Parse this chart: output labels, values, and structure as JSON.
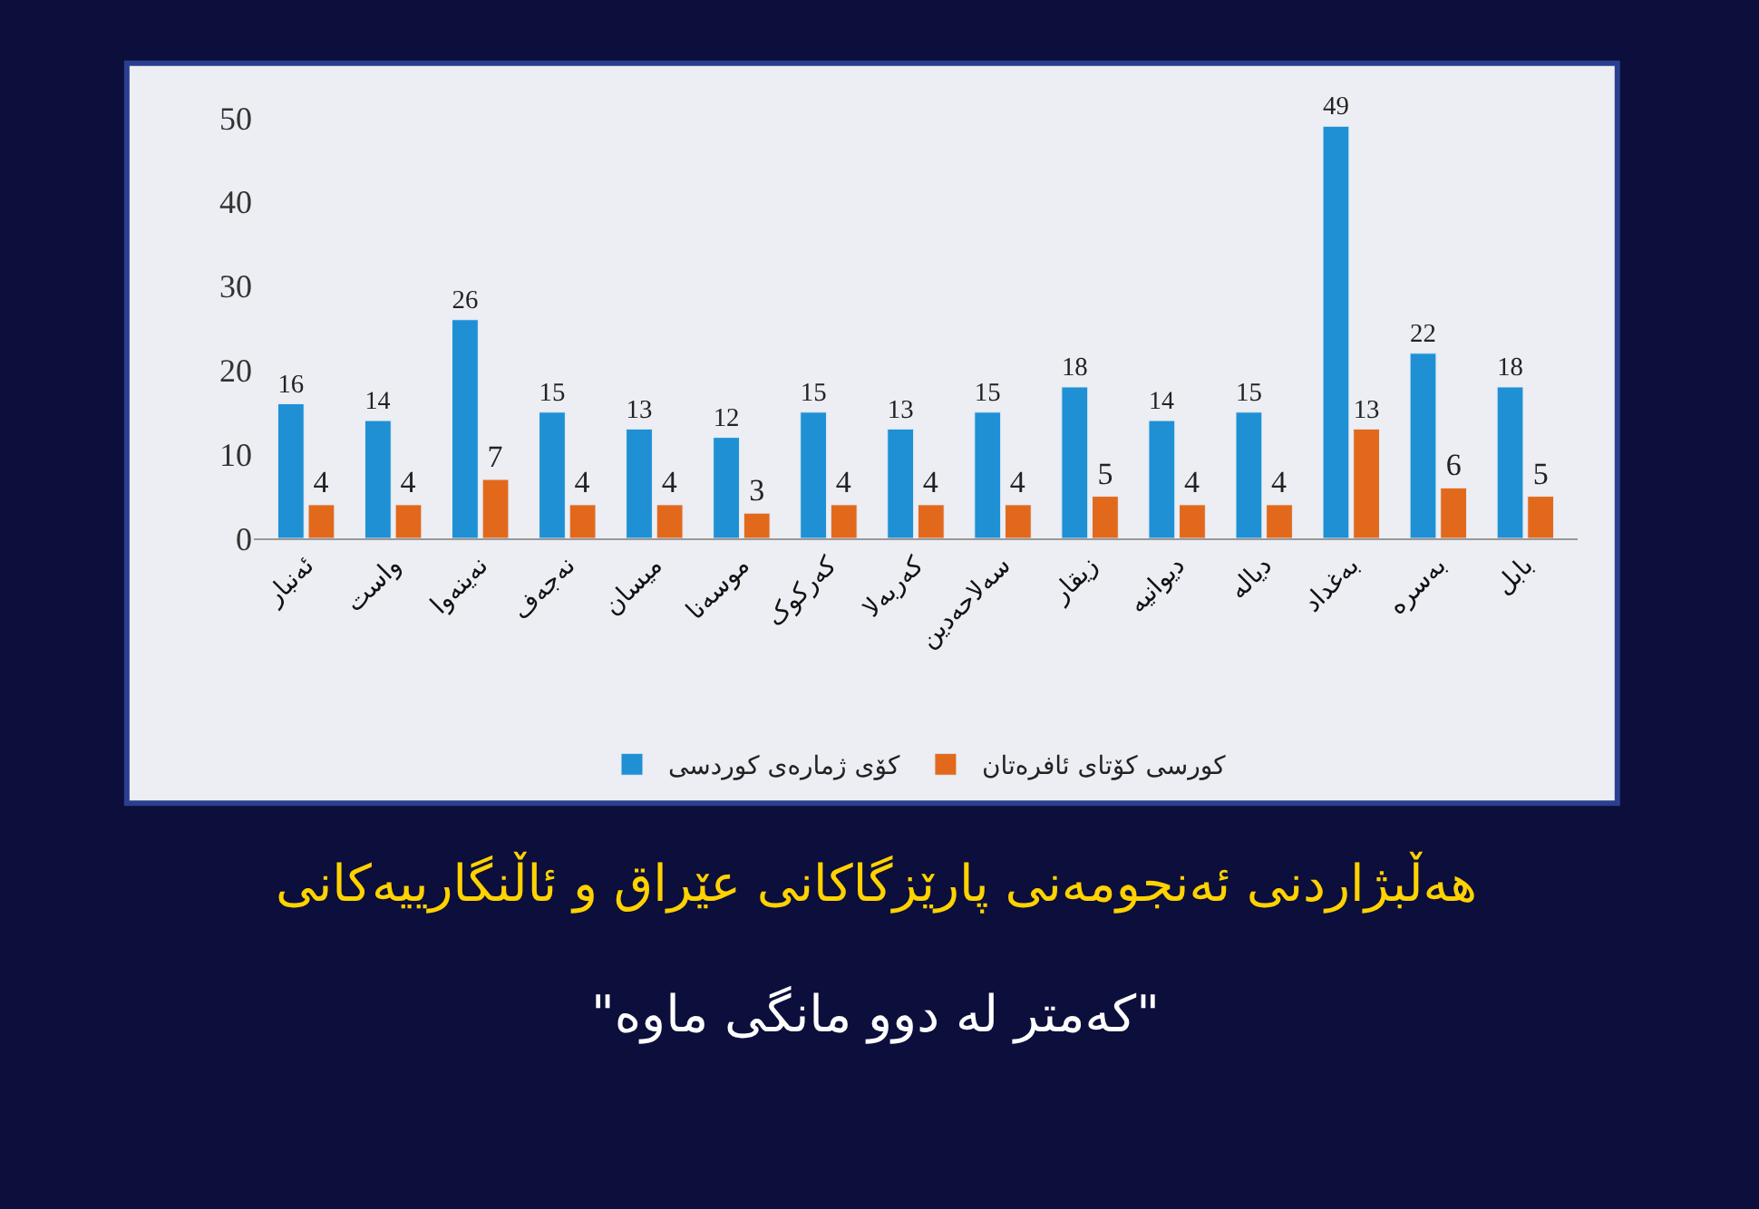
{
  "chart_data": {
    "type": "bar",
    "title": "هەڵبژاردنی ئەنجومەنی پارێزگاکانی عێراق و ئاڵنگارییەکانی",
    "subtitle": "\"کەمتر لە دوو مانگی ماوە\"",
    "categories": [
      "ئەنبار",
      "واست",
      "نەینەوا",
      "نەجەف",
      "میسان",
      "موسەنا",
      "کەرکوک",
      "کەربەلا",
      "سەلاحەدین",
      "زیقار",
      "دیوانیە",
      "دیالە",
      "بەغداد",
      "بەسرە",
      "بابل"
    ],
    "series": [
      {
        "name": "کۆی ژمارەی کوردسی",
        "color": "#1f90d4",
        "values": [
          16,
          14,
          26,
          15,
          13,
          12,
          15,
          13,
          15,
          18,
          14,
          15,
          49,
          22,
          18
        ]
      },
      {
        "name": "کورسی کۆتای ئافرەتان",
        "color": "#e2691c",
        "values": [
          4,
          4,
          7,
          4,
          4,
          3,
          4,
          4,
          4,
          5,
          4,
          4,
          13,
          6,
          5
        ]
      }
    ],
    "ylim": [
      0,
      50
    ],
    "yticks": [
      0,
      10,
      20,
      30,
      40,
      50
    ],
    "grid": false,
    "legend": "bottom",
    "data_labels": true
  }
}
